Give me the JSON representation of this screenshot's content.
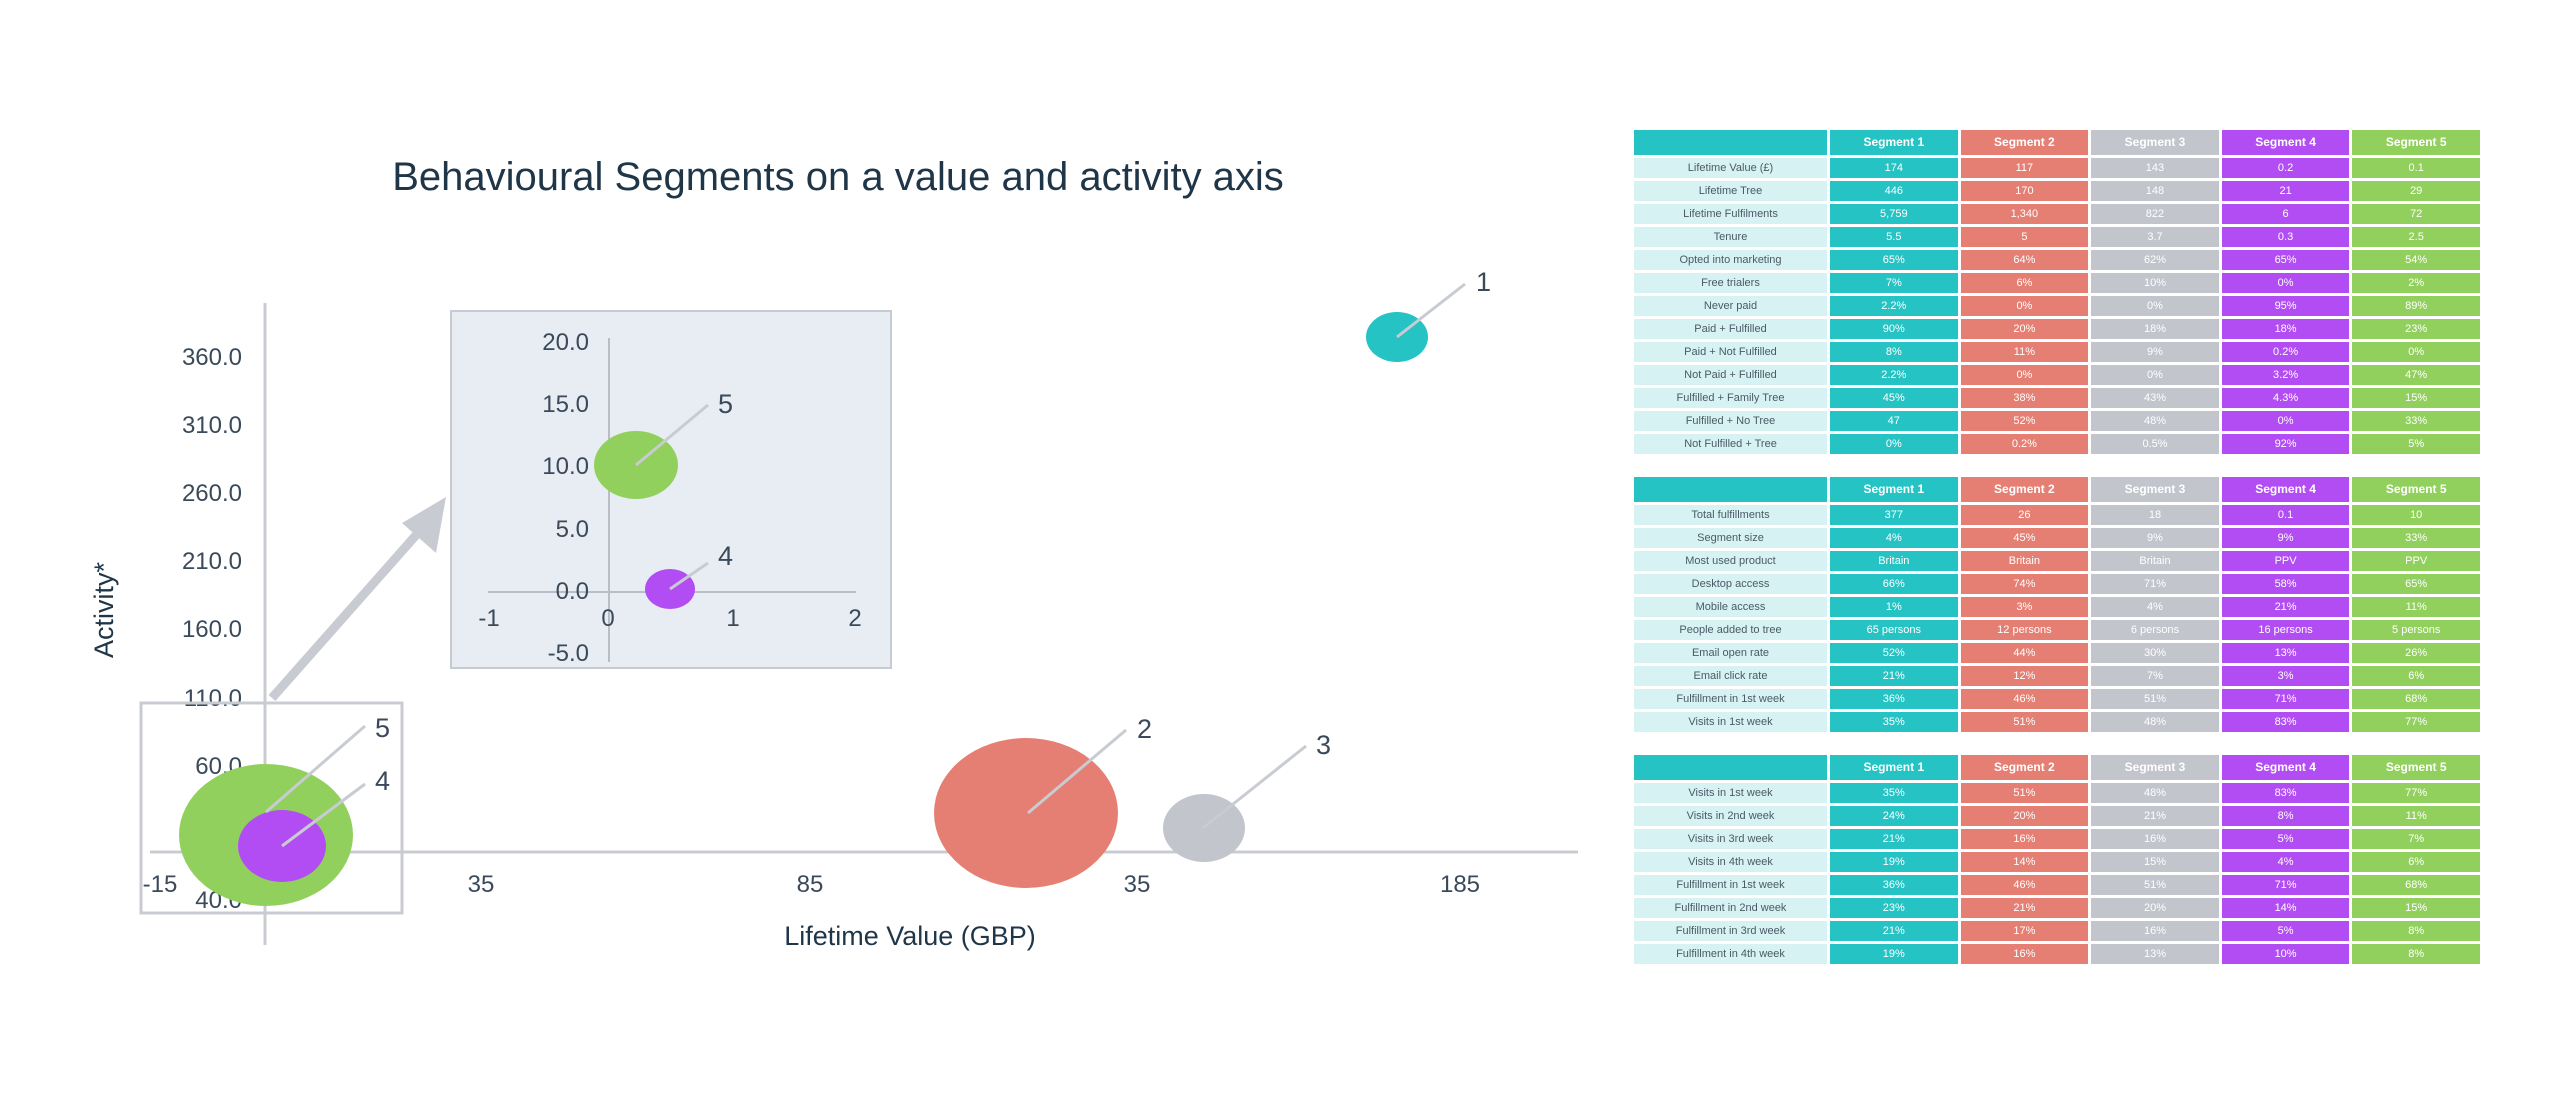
{
  "chart_data": {
    "type": "scatter",
    "subtype": "bubble",
    "title": "Behavioural Segments on a value and activity axis",
    "xlabel": "Lifetime Value (GBP)",
    "ylabel": "Activity*",
    "main_x_ticks": [
      "-15",
      "35",
      "85",
      "35",
      "185"
    ],
    "main_y_ticks": [
      "360.0",
      "310.0",
      "260.0",
      "210.0",
      "160.0",
      "110.0",
      "60.0",
      "10.0",
      "40.0"
    ],
    "inset_x_ticks": [
      "-1",
      "0",
      "1",
      "2"
    ],
    "inset_y_ticks": [
      "20.0",
      "15.0",
      "10.0",
      "5.0",
      "0.0",
      "-5.0"
    ],
    "bubble_labels": [
      "1",
      "2",
      "3",
      "4",
      "5"
    ],
    "colors": {
      "segment_1": "#26c3c4",
      "segment_2": "#e57f73",
      "segment_3": "#c2c5cc",
      "segment_4": "#b24df3",
      "segment_5": "#92d05e"
    }
  },
  "tables": [
    {
      "headers": [
        "",
        "Segment 1",
        "Segment 2",
        "Segment 3",
        "Segment 4",
        "Segment 5"
      ],
      "rows": [
        {
          "label": "Lifetime Value (£)",
          "values": [
            "174",
            "117",
            "143",
            "0.2",
            "0.1"
          ]
        },
        {
          "label": "Lifetime Tree",
          "values": [
            "446",
            "170",
            "148",
            "21",
            "29"
          ]
        },
        {
          "label": "Lifetime Fulfilments",
          "values": [
            "5,759",
            "1,340",
            "822",
            "6",
            "72"
          ]
        },
        {
          "label": "Tenure",
          "values": [
            "5.5",
            "5",
            "3.7",
            "0.3",
            "2.5"
          ]
        },
        {
          "label": "Opted into marketing",
          "values": [
            "65%",
            "64%",
            "62%",
            "65%",
            "54%"
          ]
        },
        {
          "label": "Free trialers",
          "values": [
            "7%",
            "6%",
            "10%",
            "0%",
            "2%"
          ]
        },
        {
          "label": "Never paid",
          "values": [
            "2.2%",
            "0%",
            "0%",
            "95%",
            "89%"
          ]
        },
        {
          "label": "Paid + Fulfilled",
          "values": [
            "90%",
            "20%",
            "18%",
            "18%",
            "23%"
          ]
        },
        {
          "label": "Paid + Not Fulfilled",
          "values": [
            "8%",
            "11%",
            "9%",
            "0.2%",
            "0%"
          ]
        },
        {
          "label": "Not Paid + Fulfilled",
          "values": [
            "2.2%",
            "0%",
            "0%",
            "3.2%",
            "47%"
          ]
        },
        {
          "label": "Fulfilled + Family Tree",
          "values": [
            "45%",
            "38%",
            "43%",
            "4.3%",
            "15%"
          ]
        },
        {
          "label": "Fulfilled + No Tree",
          "values": [
            "47",
            "52%",
            "48%",
            "0%",
            "33%"
          ]
        },
        {
          "label": "Not Fulfilled + Tree",
          "values": [
            "0%",
            "0.2%",
            "0.5%",
            "92%",
            "5%"
          ]
        }
      ]
    },
    {
      "headers": [
        "",
        "Segment 1",
        "Segment 2",
        "Segment 3",
        "Segment 4",
        "Segment 5"
      ],
      "rows": [
        {
          "label": "Total fulfillments",
          "values": [
            "377",
            "26",
            "18",
            "0.1",
            "10"
          ]
        },
        {
          "label": "Segment size",
          "values": [
            "4%",
            "45%",
            "9%",
            "9%",
            "33%"
          ]
        },
        {
          "label": "Most used product",
          "values": [
            "Britain",
            "Britain",
            "Britain",
            "PPV",
            "PPV"
          ]
        },
        {
          "label": "Desktop access",
          "values": [
            "66%",
            "74%",
            "71%",
            "58%",
            "65%"
          ]
        },
        {
          "label": "Mobile access",
          "values": [
            "1%",
            "3%",
            "4%",
            "21%",
            "11%"
          ]
        },
        {
          "label": "People added to tree",
          "values": [
            "65 persons",
            "12 persons",
            "6 persons",
            "16 persons",
            "5 persons"
          ]
        },
        {
          "label": "Email open rate",
          "values": [
            "52%",
            "44%",
            "30%",
            "13%",
            "26%"
          ]
        },
        {
          "label": "Email click rate",
          "values": [
            "21%",
            "12%",
            "7%",
            "3%",
            "6%"
          ]
        },
        {
          "label": "Fulfillment in 1st week",
          "values": [
            "36%",
            "46%",
            "51%",
            "71%",
            "68%"
          ]
        },
        {
          "label": "Visits in 1st week",
          "values": [
            "35%",
            "51%",
            "48%",
            "83%",
            "77%"
          ]
        }
      ]
    },
    {
      "headers": [
        "",
        "Segment 1",
        "Segment 2",
        "Segment 3",
        "Segment 4",
        "Segment 5"
      ],
      "rows": [
        {
          "label": "Visits in 1st week",
          "values": [
            "35%",
            "51%",
            "48%",
            "83%",
            "77%"
          ]
        },
        {
          "label": "Visits in 2nd week",
          "values": [
            "24%",
            "20%",
            "21%",
            "8%",
            "11%"
          ]
        },
        {
          "label": "Visits in 3rd week",
          "values": [
            "21%",
            "16%",
            "16%",
            "5%",
            "7%"
          ]
        },
        {
          "label": "Visits in 4th week",
          "values": [
            "19%",
            "14%",
            "15%",
            "4%",
            "6%"
          ]
        },
        {
          "label": "Fulfillment in 1st week",
          "values": [
            "36%",
            "46%",
            "51%",
            "71%",
            "68%"
          ]
        },
        {
          "label": "Fulfillment in 2nd week",
          "values": [
            "23%",
            "21%",
            "20%",
            "14%",
            "15%"
          ]
        },
        {
          "label": "Fulfillment in 3rd week",
          "values": [
            "21%",
            "17%",
            "16%",
            "5%",
            "8%"
          ]
        },
        {
          "label": "Fulfillment in 4th week",
          "values": [
            "19%",
            "16%",
            "13%",
            "10%",
            "8%"
          ]
        }
      ]
    }
  ]
}
